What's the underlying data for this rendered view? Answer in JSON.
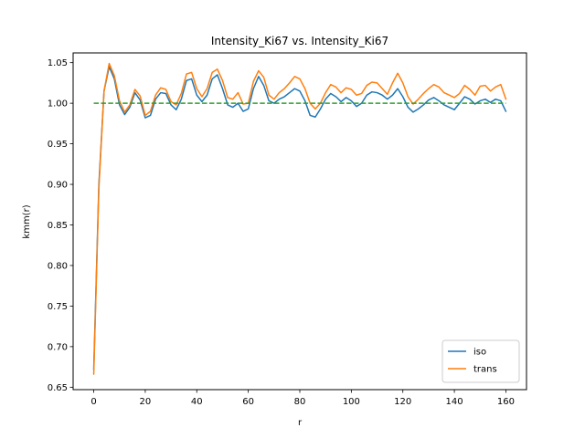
{
  "chart_data": {
    "type": "line",
    "title": "Intensity_Ki67 vs. Intensity_Ki67",
    "xlabel": "r",
    "ylabel": "kmm(r)",
    "xlim": [
      -8,
      168
    ],
    "ylim": [
      0.647,
      1.062
    ],
    "xticks": [
      0,
      20,
      40,
      60,
      80,
      100,
      120,
      140,
      160
    ],
    "yticks": [
      0.65,
      0.7,
      0.75,
      0.8,
      0.85,
      0.9,
      0.95,
      1.0,
      1.05
    ],
    "ytick_labels": [
      "0.65",
      "0.70",
      "0.75",
      "0.80",
      "0.85",
      "0.90",
      "0.95",
      "1.00",
      "1.05"
    ],
    "grid": false,
    "legend_position": "lower-right",
    "series": [
      {
        "name": "iso",
        "color": "#1f77b4",
        "x": [
          0,
          2,
          4,
          6,
          8,
          10,
          12,
          14,
          16,
          18,
          20,
          22,
          24,
          26,
          28,
          30,
          32,
          34,
          36,
          38,
          40,
          42,
          44,
          46,
          48,
          50,
          52,
          54,
          56,
          58,
          60,
          62,
          64,
          66,
          68,
          70,
          72,
          74,
          76,
          78,
          80,
          82,
          84,
          86,
          88,
          90,
          92,
          94,
          96,
          98,
          100,
          102,
          104,
          106,
          108,
          110,
          112,
          114,
          116,
          118,
          120,
          122,
          124,
          126,
          128,
          130,
          132,
          134,
          136,
          138,
          140,
          142,
          144,
          146,
          148,
          150,
          152,
          154,
          156,
          158,
          160
        ],
        "y": [
          0.672,
          0.9,
          1.015,
          1.045,
          1.03,
          0.998,
          0.986,
          0.995,
          1.013,
          1.004,
          0.982,
          0.985,
          1.005,
          1.013,
          1.012,
          0.998,
          0.992,
          1.005,
          1.028,
          1.03,
          1.01,
          1.002,
          1.01,
          1.03,
          1.035,
          1.018,
          0.998,
          0.995,
          1.0,
          0.99,
          0.993,
          1.018,
          1.033,
          1.022,
          1.003,
          1.0,
          1.005,
          1.008,
          1.013,
          1.018,
          1.015,
          1.003,
          0.985,
          0.983,
          0.993,
          1.005,
          1.012,
          1.008,
          1.002,
          1.007,
          1.003,
          0.996,
          1.0,
          1.01,
          1.014,
          1.013,
          1.01,
          1.005,
          1.01,
          1.018,
          1.008,
          0.995,
          0.989,
          0.993,
          0.998,
          1.004,
          1.007,
          1.003,
          0.998,
          0.995,
          0.992,
          1.0,
          1.008,
          1.005,
          0.999,
          1.003,
          1.005,
          1.001,
          1.005,
          1.003,
          0.99
        ]
      },
      {
        "name": "trans",
        "color": "#ff7f0e",
        "x": [
          0,
          2,
          4,
          6,
          8,
          10,
          12,
          14,
          16,
          18,
          20,
          22,
          24,
          26,
          28,
          30,
          32,
          34,
          36,
          38,
          40,
          42,
          44,
          46,
          48,
          50,
          52,
          54,
          56,
          58,
          60,
          62,
          64,
          66,
          68,
          70,
          72,
          74,
          76,
          78,
          80,
          82,
          84,
          86,
          88,
          90,
          92,
          94,
          96,
          98,
          100,
          102,
          104,
          106,
          108,
          110,
          112,
          114,
          116,
          118,
          120,
          122,
          124,
          126,
          128,
          130,
          132,
          134,
          136,
          138,
          140,
          142,
          144,
          146,
          148,
          150,
          152,
          154,
          156,
          158,
          160
        ],
        "y": [
          0.666,
          0.895,
          1.015,
          1.049,
          1.034,
          1.003,
          0.989,
          0.998,
          1.017,
          1.009,
          0.985,
          0.99,
          1.01,
          1.019,
          1.017,
          1.002,
          0.998,
          1.012,
          1.036,
          1.038,
          1.018,
          1.008,
          1.018,
          1.038,
          1.042,
          1.028,
          1.007,
          1.005,
          1.013,
          0.999,
          1.0,
          1.027,
          1.04,
          1.032,
          1.01,
          1.005,
          1.013,
          1.018,
          1.025,
          1.033,
          1.03,
          1.018,
          1.0,
          0.993,
          1.0,
          1.013,
          1.023,
          1.02,
          1.013,
          1.019,
          1.017,
          1.01,
          1.012,
          1.022,
          1.026,
          1.025,
          1.018,
          1.011,
          1.025,
          1.037,
          1.025,
          1.008,
          0.999,
          1.005,
          1.012,
          1.018,
          1.023,
          1.02,
          1.013,
          1.01,
          1.007,
          1.012,
          1.022,
          1.017,
          1.01,
          1.021,
          1.022,
          1.015,
          1.02,
          1.023,
          1.005
        ]
      },
      {
        "name": "",
        "color": "#2ca02c",
        "style": "dashed",
        "x": [
          0,
          160
        ],
        "y": [
          1.0,
          1.0
        ]
      }
    ]
  }
}
